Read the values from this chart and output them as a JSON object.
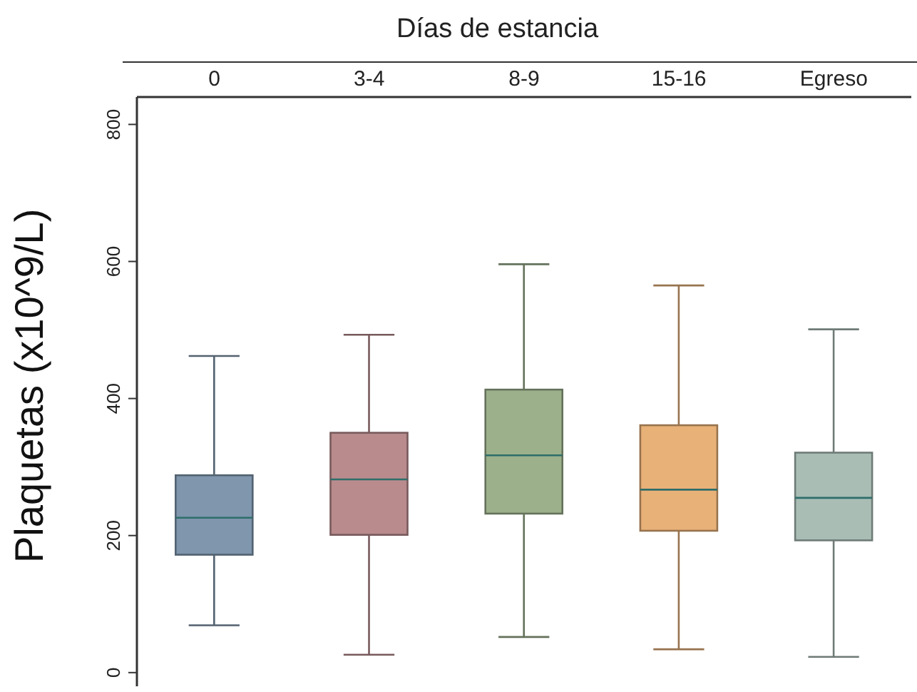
{
  "chart_data": {
    "type": "box",
    "xlabel": "Días de estancia",
    "ylabel": "Plaquetas (x10^9/L)",
    "categories": [
      "0",
      "3-4",
      "8-9",
      "15-16",
      "Egreso"
    ],
    "boxes": [
      {
        "low": 69,
        "q1": 172,
        "median": 226,
        "q3": 288,
        "high": 462
      },
      {
        "low": 26,
        "q1": 201,
        "median": 282,
        "q3": 350,
        "high": 493
      },
      {
        "low": 52,
        "q1": 232,
        "median": 317,
        "q3": 413,
        "high": 596
      },
      {
        "low": 34,
        "q1": 207,
        "median": 267,
        "q3": 361,
        "high": 565
      },
      {
        "low": 23,
        "q1": 193,
        "median": 255,
        "q3": 321,
        "high": 501
      }
    ],
    "colors": [
      "#7f96ad",
      "#b98b8d",
      "#9cb08c",
      "#e8b178",
      "#a9bdb5"
    ],
    "ylim": [
      -20,
      840
    ],
    "yticks": [
      0,
      200,
      400,
      600,
      800
    ],
    "grid": false
  }
}
